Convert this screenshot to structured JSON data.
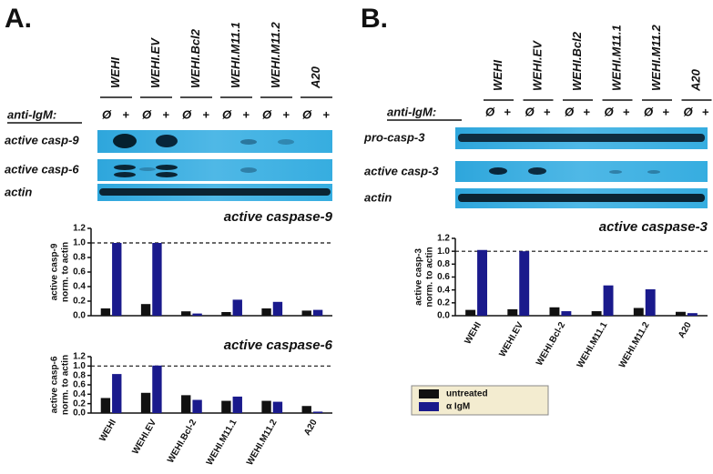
{
  "panels": [
    {
      "label": "A.",
      "treatment_label": "anti-IgM:",
      "treatments": [
        "Ø",
        "+"
      ],
      "cell_lines": [
        "WEHI",
        "WEHI.EV",
        "WEHI.Bcl2",
        "WEHI.M11.1",
        "WEHI.M11.2",
        "A20"
      ],
      "blots": [
        "active casp-9",
        "active casp-6",
        "actin"
      ]
    },
    {
      "label": "B.",
      "treatment_label": "anti-IgM:",
      "treatments": [
        "Ø",
        "+"
      ],
      "cell_lines": [
        "WEHI",
        "WEHI.EV",
        "WEHI.Bcl2",
        "WEHI.M11.1",
        "WEHI.M11.2",
        "A20"
      ],
      "blots": [
        "pro-casp-3",
        "active casp-3",
        "actin"
      ]
    }
  ],
  "chart_data": [
    {
      "type": "bar",
      "title": "active caspase-9",
      "ylabel": [
        "active casp-9",
        "norm. to actin"
      ],
      "categories": [
        null,
        null,
        null,
        null,
        null,
        null
      ],
      "series": [
        {
          "color": "#111111",
          "values": [
            0.1,
            0.16,
            0.06,
            0.05,
            0.1,
            0.07
          ]
        },
        {
          "color": "#1a1a8c",
          "values": [
            1.0,
            1.0,
            0.03,
            0.22,
            0.19,
            0.08
          ]
        }
      ],
      "ylim": [
        0,
        1.2
      ],
      "yticks": [
        {
          "value": 0,
          "label": "0.0"
        },
        0.2,
        0.4,
        0.6,
        0.8,
        {
          "value": 1,
          "label": "1.0"
        },
        1.2
      ],
      "reference_line": 1
    },
    {
      "type": "bar",
      "title": "active caspase-6",
      "ylabel": [
        "active casp-6",
        "norm. to actin"
      ],
      "categories": [
        "WEHI",
        "WEHI.EV",
        "WEHI.Bcl-2",
        "WEHI.M11.1",
        "WEHI.M11.2",
        "A20"
      ],
      "series": [
        {
          "color": "#111111",
          "values": [
            0.32,
            0.43,
            0.38,
            0.26,
            0.26,
            0.15
          ]
        },
        {
          "color": "#1a1a8c",
          "values": [
            0.83,
            1.01,
            0.28,
            0.35,
            0.24,
            0.03
          ]
        }
      ],
      "ylim": [
        0,
        1.2
      ],
      "yticks": [
        {
          "value": 0,
          "label": "0.0"
        },
        0.2,
        0.4,
        0.6,
        0.8,
        {
          "value": 1,
          "label": "1.0"
        },
        1.2
      ],
      "reference_line": 1
    },
    {
      "type": "bar",
      "title": "active caspase-3",
      "ylabel": [
        "active casp-3",
        "norm. to actin"
      ],
      "categories": [
        "WEHI",
        "WEHI.EV",
        "WEHI.Bcl-2",
        "WEHI.M11.1",
        "WEHI.M11.2",
        "A20"
      ],
      "series": [
        {
          "name": "untreated",
          "color": "#111111",
          "values": [
            0.09,
            0.1,
            0.13,
            0.07,
            0.12,
            0.06
          ]
        },
        {
          "name": "α IgM",
          "color": "#1a1a8c",
          "values": [
            1.02,
            1.0,
            0.07,
            0.47,
            0.41,
            0.04
          ]
        }
      ],
      "ylim": [
        0,
        1.2
      ],
      "yticks": [
        {
          "value": 0,
          "label": "0.0"
        },
        0.2,
        0.4,
        0.6,
        0.8,
        {
          "value": 1,
          "label": "1.0"
        },
        1.2
      ],
      "reference_line": 1
    }
  ]
}
